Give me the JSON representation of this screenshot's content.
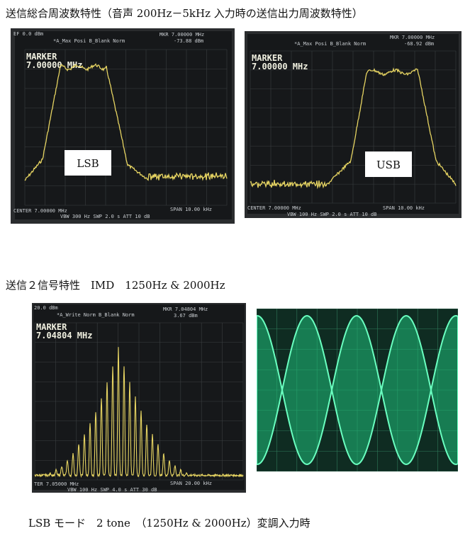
{
  "header": {
    "title": "送信総合周波数特性（音声 200Hz－5kHz 入力時の送信出力周波数特性）"
  },
  "panels": [
    {
      "top_left": "EF 0.0 dBm",
      "top_mid": "*A_Max  Posi  B_Blank Norm",
      "mkr": "MKR 7.00000 MHz",
      "mkr_level": "-73.88 dBm",
      "marker_label": "MARKER",
      "marker_freq": "7.00000 MHz",
      "tag": "LSB",
      "footer_left": "CENTER 7.00000 MHz",
      "footer_right": "SPAN 10.00 kHz",
      "footer_mid": "VBW 300 Hz   SWP 2.0 s   ATT 10 dB"
    },
    {
      "top_mid": "*A_Max  Posi  B_Blank Norm",
      "mkr": "MKR 7.00000 MHz",
      "mkr_level": "-68.92 dBm",
      "marker_label": "MARKER",
      "marker_freq": "7.00000 MHz",
      "tag": "USB",
      "footer_left": "CENTER 7.00000 MHz",
      "footer_right": "SPAN 10.00 kHz",
      "footer_mid": "VBW 100 Hz   SWP 2.0 s   ATT 10 dB"
    }
  ],
  "section2": {
    "title": "送信２信号特性　IMD　1250Hz & 2000Hz"
  },
  "imd_panel": {
    "top_left": "20.0 dBm",
    "top_mid": "*A_Write Norm  B_Blank Norm",
    "mkr": "MKR 7.04804 MHz",
    "mkr_level": "3.67 dBm",
    "marker_label": "MARKER",
    "marker_freq": "7.04804 MHz",
    "footer_left": "TER 7.05000 MHz",
    "footer_right": "SPAN 20.00 kHz",
    "footer_mid": "VBW 100 Hz   SWP 4.0 s   ATT 30 dB"
  },
  "caption": "LSB モード　2 tone　（1250Hz & 2000Hz）変調入力時"
}
